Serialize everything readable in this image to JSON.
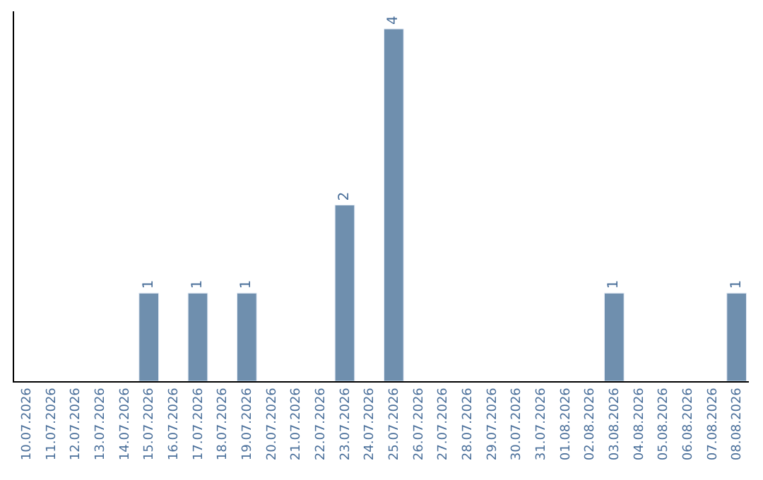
{
  "chart_data": {
    "type": "bar",
    "categories": [
      "10.07.2026",
      "11.07.2026",
      "12.07.2026",
      "13.07.2026",
      "14.07.2026",
      "15.07.2026",
      "16.07.2026",
      "17.07.2026",
      "18.07.2026",
      "19.07.2026",
      "20.07.2026",
      "21.07.2026",
      "22.07.2026",
      "23.07.2026",
      "24.07.2026",
      "25.07.2026",
      "26.07.2026",
      "27.07.2026",
      "28.07.2026",
      "29.07.2026",
      "30.07.2026",
      "31.07.2026",
      "01.08.2026",
      "02.08.2026",
      "03.08.2026",
      "04.08.2026",
      "05.08.2026",
      "06.08.2026",
      "07.08.2026",
      "08.08.2026"
    ],
    "values": [
      null,
      null,
      null,
      null,
      null,
      1,
      null,
      1,
      null,
      1,
      null,
      null,
      null,
      2,
      null,
      4,
      null,
      null,
      null,
      null,
      null,
      null,
      null,
      null,
      1,
      null,
      null,
      null,
      null,
      1
    ],
    "value_labels": [
      null,
      null,
      null,
      null,
      null,
      "1",
      null,
      "1",
      null,
      "1",
      null,
      null,
      null,
      "2",
      null,
      "4",
      null,
      null,
      null,
      null,
      null,
      null,
      null,
      null,
      "1",
      null,
      null,
      null,
      null,
      "1"
    ],
    "color": "#6f8fae",
    "tick_labels": "x"
  }
}
